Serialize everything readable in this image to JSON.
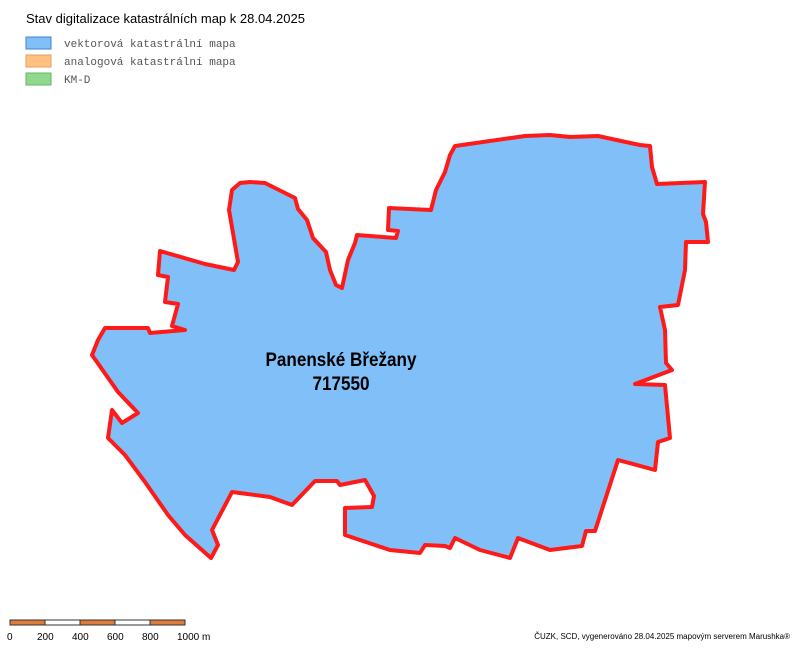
{
  "header": {
    "title": "Stav digitalizace katastrálních map k 28.04.2025"
  },
  "legend": [
    {
      "label": "vektorová katastrální mapa",
      "color": "#80bff8",
      "border": "#3a86d0"
    },
    {
      "label": "analogová katastrální mapa",
      "color": "#ffc080",
      "border": "#e0a060"
    },
    {
      "label": "KM-D",
      "color": "#90d890",
      "border": "#60b860"
    }
  ],
  "area": {
    "name": "Panenské Břežany",
    "code": "717550"
  },
  "scale_bar": {
    "labels": [
      "0",
      "200",
      "400",
      "600",
      "800",
      "1000 m"
    ]
  },
  "footer": {
    "attribution": "ČUZK, SCD, vygenerováno 28.04.2025 mapovým serverem Marushka®"
  }
}
